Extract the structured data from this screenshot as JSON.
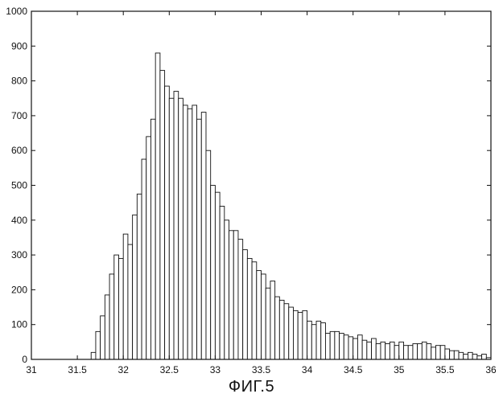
{
  "figure": {
    "caption": "ФИГ.5"
  },
  "chart_data": {
    "type": "bar",
    "title": "",
    "xlabel": "",
    "ylabel": "",
    "xlim": [
      31,
      36
    ],
    "ylim": [
      0,
      1000
    ],
    "x_ticks": [
      "31",
      "31.5",
      "32",
      "32.5",
      "33",
      "33.5",
      "34",
      "34.5",
      "35",
      "35.5",
      "36"
    ],
    "y_ticks": [
      "0",
      "100",
      "200",
      "300",
      "400",
      "500",
      "600",
      "700",
      "800",
      "900",
      "1000"
    ],
    "grid": false,
    "bin_width": 0.05,
    "bin_starts": [
      31.65,
      31.7,
      31.75,
      31.8,
      31.85,
      31.9,
      31.95,
      32.0,
      32.05,
      32.1,
      32.15,
      32.2,
      32.25,
      32.3,
      32.35,
      32.4,
      32.45,
      32.5,
      32.55,
      32.6,
      32.65,
      32.7,
      32.75,
      32.8,
      32.85,
      32.9,
      32.95,
      33.0,
      33.05,
      33.1,
      33.15,
      33.2,
      33.25,
      33.3,
      33.35,
      33.4,
      33.45,
      33.5,
      33.55,
      33.6,
      33.65,
      33.7,
      33.75,
      33.8,
      33.85,
      33.9,
      33.95,
      34.0,
      34.05,
      34.1,
      34.15,
      34.2,
      34.25,
      34.3,
      34.35,
      34.4,
      34.45,
      34.5,
      34.55,
      34.6,
      34.65,
      34.7,
      34.75,
      34.8,
      34.85,
      34.9,
      34.95,
      35.0,
      35.05,
      35.1,
      35.15,
      35.2,
      35.25,
      35.3,
      35.35,
      35.4,
      35.45,
      35.5,
      35.55,
      35.6,
      35.65,
      35.7,
      35.75,
      35.8,
      35.85,
      35.9,
      35.95
    ],
    "values": [
      20,
      80,
      125,
      185,
      245,
      300,
      290,
      360,
      330,
      415,
      475,
      575,
      640,
      690,
      880,
      830,
      785,
      750,
      770,
      750,
      730,
      720,
      730,
      690,
      710,
      600,
      500,
      480,
      440,
      400,
      370,
      370,
      345,
      315,
      290,
      280,
      255,
      245,
      205,
      225,
      180,
      170,
      160,
      150,
      140,
      135,
      140,
      110,
      100,
      110,
      105,
      75,
      80,
      80,
      75,
      70,
      65,
      60,
      70,
      55,
      50,
      60,
      45,
      50,
      45,
      50,
      40,
      50,
      40,
      40,
      45,
      45,
      50,
      45,
      35,
      40,
      40,
      30,
      25,
      25,
      20,
      15,
      20,
      15,
      10,
      15,
      5
    ]
  }
}
